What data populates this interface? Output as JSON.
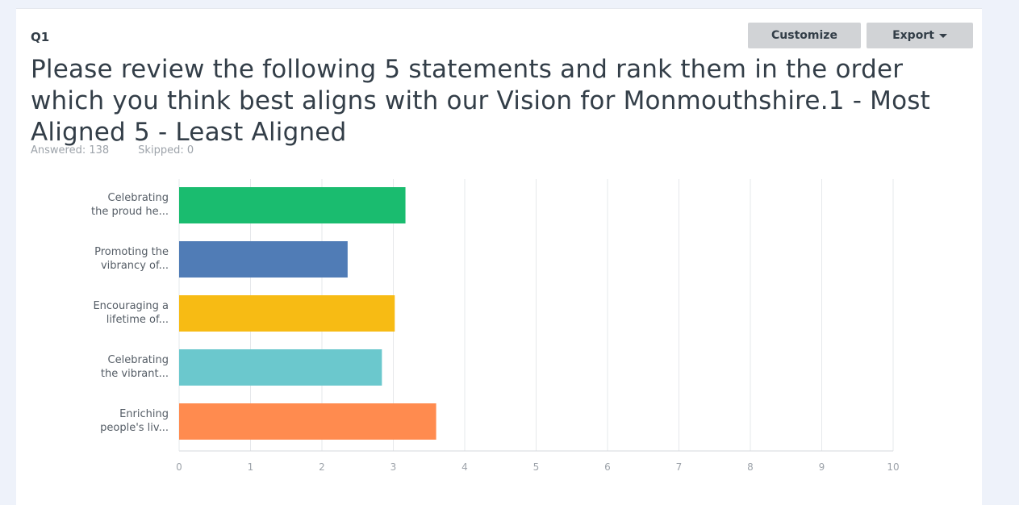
{
  "question": {
    "number": "Q1",
    "text": "Please review the following 5 statements and rank them in the order which you think best aligns with our Vision for Monmouthshire.1 - Most Aligned 5 - Least Aligned",
    "answered": "Answered: 138",
    "skipped": "Skipped: 0"
  },
  "toolbar": {
    "customize_label": "Customize",
    "export_label": "Export"
  },
  "chart_data": {
    "type": "bar",
    "orientation": "horizontal",
    "categories": [
      [
        "Celebrating",
        "the proud he..."
      ],
      [
        "Promoting the",
        "vibrancy of..."
      ],
      [
        "Encouraging a",
        "lifetime of..."
      ],
      [
        "Celebrating",
        "the vibrant..."
      ],
      [
        "Enriching",
        "people's liv..."
      ]
    ],
    "values": [
      3.17,
      2.36,
      3.02,
      2.84,
      3.6
    ],
    "colors": [
      "#1abc6f",
      "#507cb6",
      "#f7bb14",
      "#6bc8cd",
      "#ff8b4f"
    ],
    "xlim": [
      0,
      10
    ],
    "xticks": [
      "0",
      "1",
      "2",
      "3",
      "4",
      "5",
      "6",
      "7",
      "8",
      "9",
      "10"
    ],
    "grid": true
  }
}
